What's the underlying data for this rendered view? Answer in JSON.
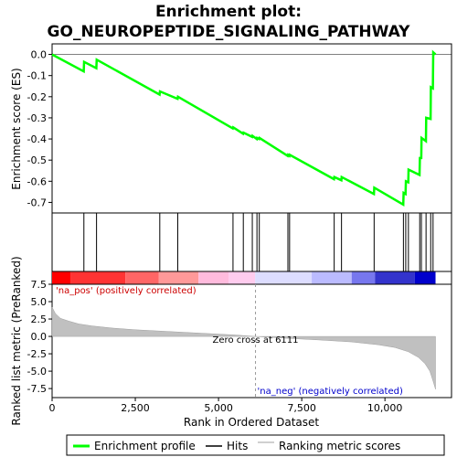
{
  "chart_data": [
    {
      "type": "line",
      "title_line1": "Enrichment plot:",
      "title_line2": "GO_NEUROPEPTIDE_SIGNALING_PATHWAY",
      "ylabel": "Enrichment score (ES)",
      "xlim": [
        0,
        12000
      ],
      "ylim": [
        -0.75,
        0.05
      ],
      "yticks": [
        0.0,
        -0.1,
        -0.2,
        -0.3,
        -0.4,
        -0.5,
        -0.6,
        -0.7
      ],
      "ytick_labels": [
        "0.0",
        "-0.1",
        "-0.2",
        "-0.3",
        "-0.4",
        "-0.5",
        "-0.6",
        "-0.7"
      ],
      "series": [
        {
          "name": "Enrichment profile",
          "color": "#00ff00",
          "x": [
            0,
            950,
            960,
            1330,
            1340,
            3230,
            3240,
            3770,
            3780,
            5430,
            5440,
            5740,
            5750,
            6010,
            6020,
            6150,
            6160,
            6220,
            6230,
            7080,
            7090,
            7130,
            7140,
            8470,
            8480,
            8690,
            8700,
            9670,
            9680,
            10550,
            10560,
            10620,
            10630,
            10700,
            10710,
            11040,
            11050,
            11090,
            11100,
            11230,
            11240,
            11370,
            11380,
            11440,
            11450,
            11520
          ],
          "y": [
            0.0,
            -0.08,
            -0.035,
            -0.065,
            -0.025,
            -0.19,
            -0.175,
            -0.21,
            -0.2,
            -0.35,
            -0.345,
            -0.375,
            -0.37,
            -0.39,
            -0.385,
            -0.4,
            -0.395,
            -0.4,
            -0.395,
            -0.48,
            -0.475,
            -0.48,
            -0.475,
            -0.59,
            -0.58,
            -0.595,
            -0.58,
            -0.66,
            -0.63,
            -0.71,
            -0.655,
            -0.66,
            -0.6,
            -0.605,
            -0.545,
            -0.57,
            -0.49,
            -0.49,
            -0.395,
            -0.41,
            -0.3,
            -0.305,
            -0.155,
            -0.16,
            0.01,
            0.0
          ]
        }
      ]
    },
    {
      "type": "scatter",
      "mark": "hits",
      "xlim": [
        0,
        12000
      ],
      "hit_positions": [
        955,
        1335,
        3235,
        3775,
        5435,
        5745,
        6015,
        6155,
        6225,
        7085,
        7135,
        8475,
        8695,
        9675,
        10555,
        10625,
        10705,
        11045,
        11095,
        11235,
        11375,
        11445
      ]
    },
    {
      "type": "heatmap",
      "mark": "rank-color-bar",
      "xlim": [
        0,
        12000
      ],
      "band_edges": [
        0,
        550,
        2200,
        3200,
        4400,
        5300,
        6100,
        7800,
        9000,
        9700,
        10900,
        11520
      ],
      "band_colors": [
        "#ff0000",
        "#ff3333",
        "#ff6666",
        "#ff9999",
        "#ffbbdd",
        "#ffccee",
        "#ddddff",
        "#bbbbff",
        "#7777ee",
        "#3333cc",
        "#0000cc"
      ]
    },
    {
      "type": "area",
      "ylabel": "Ranked list metric (PreRanked)",
      "xlabel": "Rank in Ordered Dataset",
      "xlim": [
        0,
        12000
      ],
      "ylim": [
        -8.8,
        7.5
      ],
      "xticks": [
        0,
        2500,
        5000,
        7500,
        10000
      ],
      "xtick_labels": [
        "0",
        "2,500",
        "5,000",
        "7,500",
        "10,000"
      ],
      "yticks": [
        7.5,
        5.0,
        2.5,
        0.0,
        -2.5,
        -5.0,
        -7.5
      ],
      "ytick_labels": [
        "7.5",
        "5.0",
        "2.5",
        "0.0",
        "-2.5",
        "-5.0",
        "-7.5"
      ],
      "zero_cross": 6111,
      "zero_cross_label": "Zero cross at 6111",
      "pos_label": "'na_pos' (positively correlated)",
      "neg_label": "'na_neg' (negatively correlated)",
      "pos_color": "#cc0000",
      "neg_color": "#0000cc",
      "fill_color": "#c0c0c0",
      "series": [
        {
          "x": [
            0,
            100,
            250,
            500,
            800,
            1200,
            1800,
            2500,
            3500,
            4500,
            5500,
            6111,
            7000,
            8000,
            9000,
            9800,
            10300,
            10700,
            11000,
            11200,
            11350,
            11450,
            11520
          ],
          "y": [
            4.2,
            3.3,
            2.6,
            2.2,
            1.8,
            1.5,
            1.2,
            0.95,
            0.7,
            0.45,
            0.2,
            0.0,
            -0.25,
            -0.5,
            -0.8,
            -1.2,
            -1.6,
            -2.2,
            -3.0,
            -3.9,
            -5.0,
            -6.5,
            -7.6
          ]
        }
      ]
    }
  ],
  "legend": {
    "items": [
      {
        "label": "Enrichment profile",
        "color": "#00ff00"
      },
      {
        "label": "Hits",
        "color": "#000000"
      },
      {
        "label": "Ranking metric scores",
        "color": "#c0c0c0"
      }
    ]
  }
}
